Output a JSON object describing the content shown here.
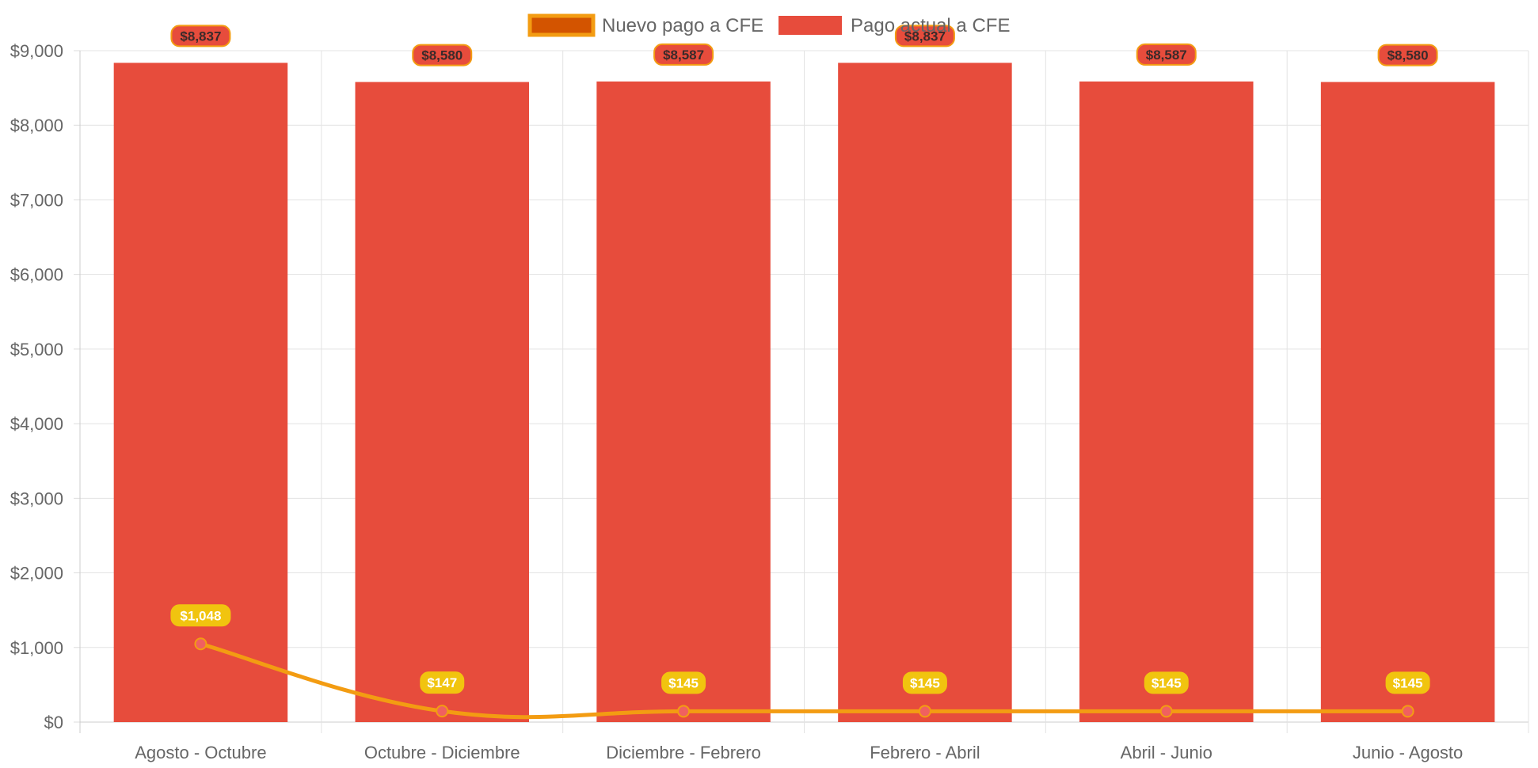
{
  "chart_data": {
    "type": "bar",
    "categories": [
      "Agosto - Octubre",
      "Octubre - Diciembre",
      "Diciembre - Febrero",
      "Febrero - Abril",
      "Abril - Junio",
      "Junio - Agosto"
    ],
    "series": [
      {
        "name": "Nuevo pago a CFE",
        "type": "line",
        "values": [
          1048,
          147,
          145,
          145,
          145,
          145
        ],
        "labels": [
          "$1,048",
          "$147",
          "$145",
          "$145",
          "$145",
          "$145"
        ],
        "color": "#f39c12",
        "point_color": "#f06060",
        "label_bg": "#f1c40f"
      },
      {
        "name": "Pago actual a CFE",
        "type": "bar",
        "values": [
          8837,
          8580,
          8587,
          8837,
          8587,
          8580
        ],
        "labels": [
          "$8,837",
          "$8,580",
          "$8,587",
          "$8,837",
          "$8,587",
          "$8,580"
        ],
        "color": "#e74c3c",
        "label_border": "#f39c12"
      }
    ],
    "ylim": [
      0,
      9000
    ],
    "yticks": [
      0,
      1000,
      2000,
      3000,
      4000,
      5000,
      6000,
      7000,
      8000,
      9000
    ],
    "ytick_labels": [
      "$0",
      "$1,000",
      "$2,000",
      "$3,000",
      "$4,000",
      "$5,000",
      "$6,000",
      "$7,000",
      "$8,000",
      "$9,000"
    ],
    "grid": true,
    "legend_position": "top-center",
    "legend_box_colors": {
      "line_fill": "#d35400",
      "line_border": "#f39c12"
    }
  }
}
